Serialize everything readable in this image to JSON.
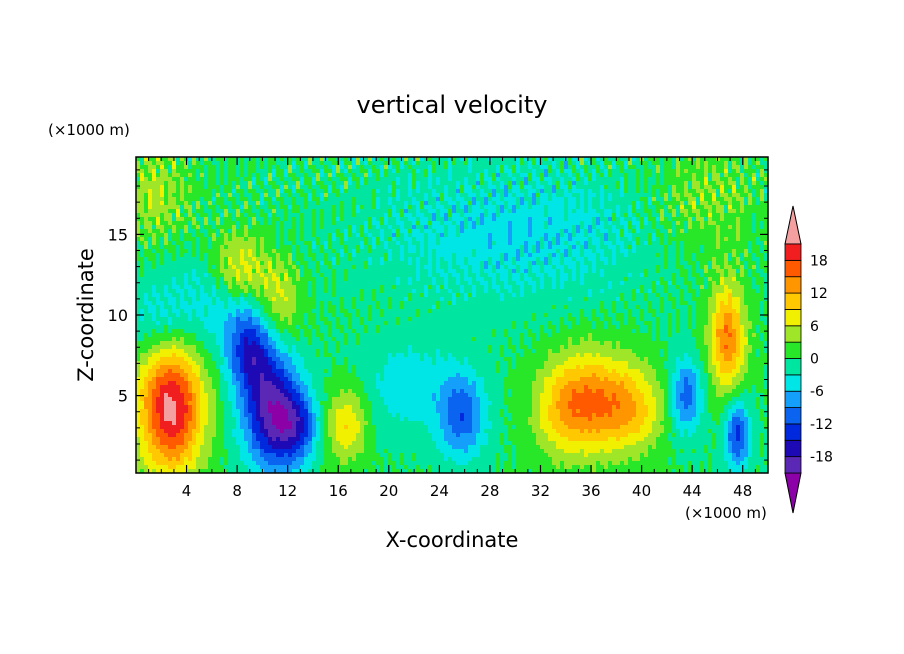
{
  "chart_data": {
    "type": "heatmap",
    "title": "vertical velocity",
    "xlabel": "X-coordinate",
    "ylabel": "Z-coordinate",
    "x_units": "(×1000 m)",
    "y_units": "(×1000 m)",
    "xlim": [
      0,
      50
    ],
    "ylim": [
      0.2,
      19.8
    ],
    "x_ticks": [
      4,
      8,
      12,
      16,
      20,
      24,
      28,
      32,
      36,
      40,
      44,
      48
    ],
    "y_ticks": [
      5,
      10,
      15
    ],
    "colorbar": {
      "levels": [
        -21,
        -18,
        -15,
        -12,
        -9,
        -6,
        -3,
        0,
        3,
        6,
        9,
        12,
        15,
        18,
        21
      ],
      "labels": [
        "18",
        "12",
        "6",
        "0",
        "-6",
        "-12",
        "-18"
      ],
      "label_values": [
        18,
        12,
        6,
        0,
        -6,
        -12,
        -18
      ],
      "colors": [
        "#8c00a8",
        "#5a28b4",
        "#1e0ab4",
        "#0028dc",
        "#0a64f0",
        "#14a0fa",
        "#00e6e6",
        "#00e6a0",
        "#28e628",
        "#a0e628",
        "#f0f000",
        "#ffc800",
        "#ff9600",
        "#ff5a00",
        "#f01e1e",
        "#f5a0a0"
      ],
      "over_color": "#f5a0a0",
      "under_color": "#8c00a8"
    },
    "features": [
      {
        "x": 2.8,
        "z": 4.2,
        "amp": 22,
        "sx": 1.8,
        "sz": 2.8
      },
      {
        "x": 10.8,
        "z": 4.0,
        "amp": -19,
        "sx": 1.6,
        "sz": 2.5
      },
      {
        "x": 9.0,
        "z": 8.0,
        "amp": -13,
        "sx": 1.3,
        "sz": 2.0
      },
      {
        "x": 12.8,
        "z": 3.0,
        "amp": -10,
        "sx": 1.2,
        "sz": 1.5
      },
      {
        "x": 8.2,
        "z": 12.8,
        "amp": 8,
        "sx": 1.5,
        "sz": 1.6
      },
      {
        "x": 11.2,
        "z": 10.8,
        "amp": 7,
        "sx": 1.3,
        "sz": 1.8
      },
      {
        "x": 16.6,
        "z": 3.2,
        "amp": 9,
        "sx": 1.2,
        "sz": 1.6
      },
      {
        "x": 25.8,
        "z": 3.8,
        "amp": -11,
        "sx": 1.3,
        "sz": 1.9
      },
      {
        "x": 21.5,
        "z": 5.5,
        "amp": -5,
        "sx": 2.5,
        "sz": 2.0
      },
      {
        "x": 36.0,
        "z": 4.6,
        "amp": 14,
        "sx": 2.3,
        "sz": 2.2
      },
      {
        "x": 39.5,
        "z": 4.2,
        "amp": 8,
        "sx": 1.8,
        "sz": 1.8
      },
      {
        "x": 33.5,
        "z": 4.0,
        "amp": 5,
        "sx": 1.5,
        "sz": 2.0
      },
      {
        "x": 43.5,
        "z": 5.0,
        "amp": -11,
        "sx": 0.9,
        "sz": 1.6
      },
      {
        "x": 46.8,
        "z": 8.6,
        "amp": 15,
        "sx": 1.0,
        "sz": 2.3
      },
      {
        "x": 47.6,
        "z": 2.6,
        "amp": -13,
        "sx": 0.7,
        "sz": 1.5
      },
      {
        "x": 30.0,
        "z": 15.0,
        "amp": -5,
        "sx": 8.0,
        "sz": 3.0
      },
      {
        "x": 1.5,
        "z": 17.5,
        "amp": 5,
        "sx": 2.0,
        "sz": 2.0
      },
      {
        "x": 45.0,
        "z": 17.0,
        "amp": 4,
        "sx": 3.0,
        "sz": 2.5
      },
      {
        "x": 5.5,
        "z": 10.5,
        "amp": -5,
        "sx": 2.5,
        "sz": 2.0
      },
      {
        "x": 1.5,
        "z": 9.5,
        "amp": -4,
        "sx": 1.5,
        "sz": 1.5
      }
    ]
  }
}
